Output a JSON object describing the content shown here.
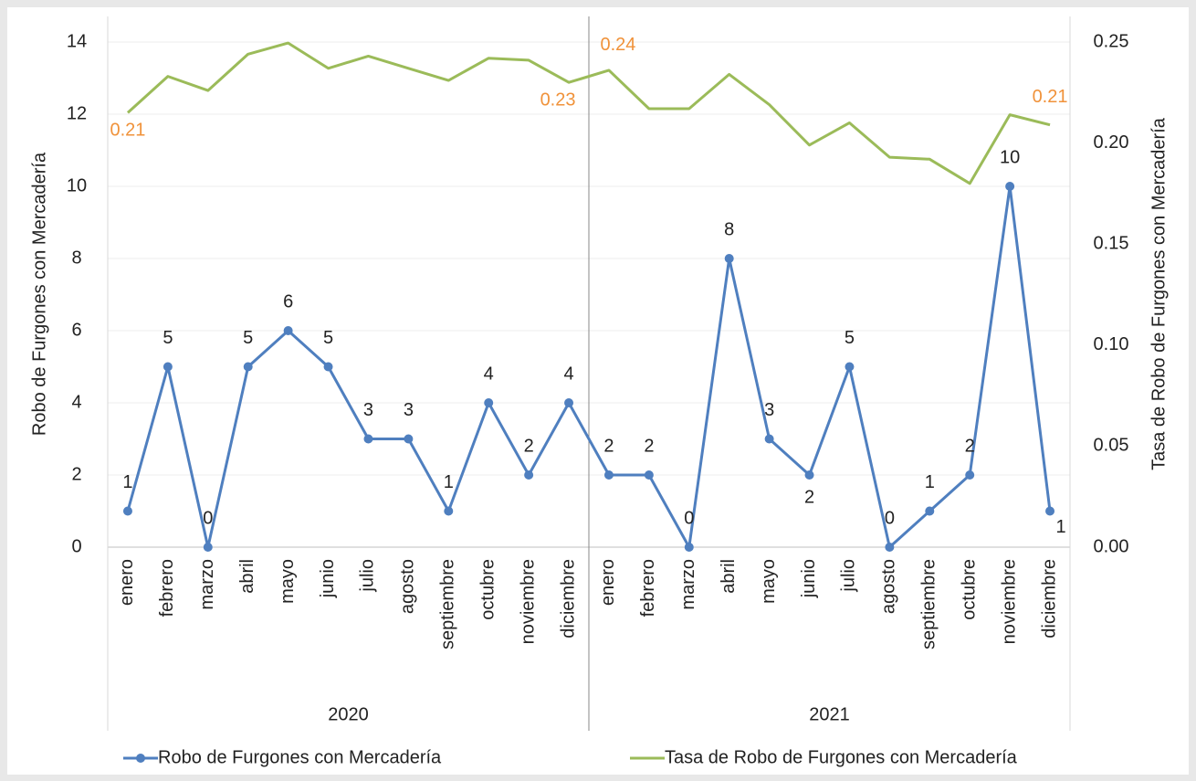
{
  "chart_data": {
    "type": "line",
    "categories": [
      "enero",
      "febrero",
      "marzo",
      "abril",
      "mayo",
      "junio",
      "julio",
      "agosto",
      "septiembre",
      "octubre",
      "noviembre",
      "diciembre",
      "enero",
      "febrero",
      "marzo",
      "abril",
      "mayo",
      "junio",
      "julio",
      "agosto",
      "septiembre",
      "octubre",
      "noviembre",
      "diciembre"
    ],
    "groups": [
      "2020",
      "2021"
    ],
    "y_label": "Robo de Furgones con Mercadería",
    "y2_label": "Tasa de Robo de Furgones con Mercadería",
    "ylim": [
      0,
      14
    ],
    "yticks": [
      0,
      2,
      4,
      6,
      8,
      10,
      12,
      14
    ],
    "y2lim": [
      0,
      0.25
    ],
    "y2ticks": [
      {
        "value": 0,
        "label": "0.00"
      },
      0.05,
      {
        "value": 0.1,
        "label": "0.10"
      },
      0.15,
      {
        "value": 0.2,
        "label": "0.20"
      },
      0.25
    ],
    "grid": true,
    "legend": "bottom",
    "series": [
      {
        "name": "Robo de Furgones con Mercadería",
        "color": "#4f7fbf",
        "markers": true,
        "values": [
          1,
          5,
          0,
          5,
          6,
          5,
          3,
          3,
          1,
          4,
          2,
          4,
          2,
          2,
          0,
          8,
          3,
          2,
          5,
          0,
          1,
          2,
          10,
          1
        ]
      },
      {
        "name": "Tasa de Robo de Furgones con Mercadería",
        "color": "#9bbb59",
        "axis": "y2",
        "markers": false,
        "values": [
          0.215,
          0.233,
          0.226,
          0.244,
          0.2495,
          0.237,
          0.243,
          0.237,
          0.231,
          0.242,
          0.241,
          0.23,
          0.236,
          0.217,
          0.217,
          0.234,
          0.219,
          0.199,
          0.21,
          0.193,
          0.192,
          0.18,
          0.214,
          0.209
        ],
        "value_labels": [
          "0.21",
          null,
          null,
          null,
          null,
          null,
          null,
          null,
          null,
          null,
          null,
          "0.23",
          "0.24",
          null,
          null,
          null,
          null,
          null,
          null,
          null,
          null,
          null,
          null,
          "0.21"
        ],
        "label_color": "#f0923a"
      }
    ]
  }
}
